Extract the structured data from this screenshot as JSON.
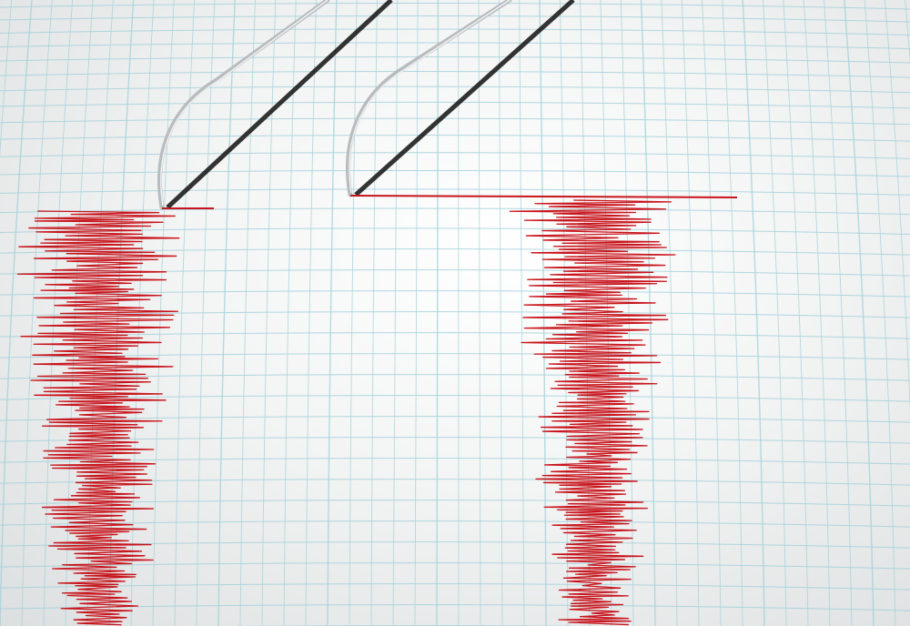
{
  "image": {
    "subject": "seismograph",
    "colors": {
      "paper": "#f4f5f5",
      "grid": "#9fd0d8",
      "trace": "#c8141c",
      "needle": "#b9bcbf"
    },
    "traces": [
      {
        "name": "left-trace"
      },
      {
        "name": "right-trace"
      }
    ]
  }
}
